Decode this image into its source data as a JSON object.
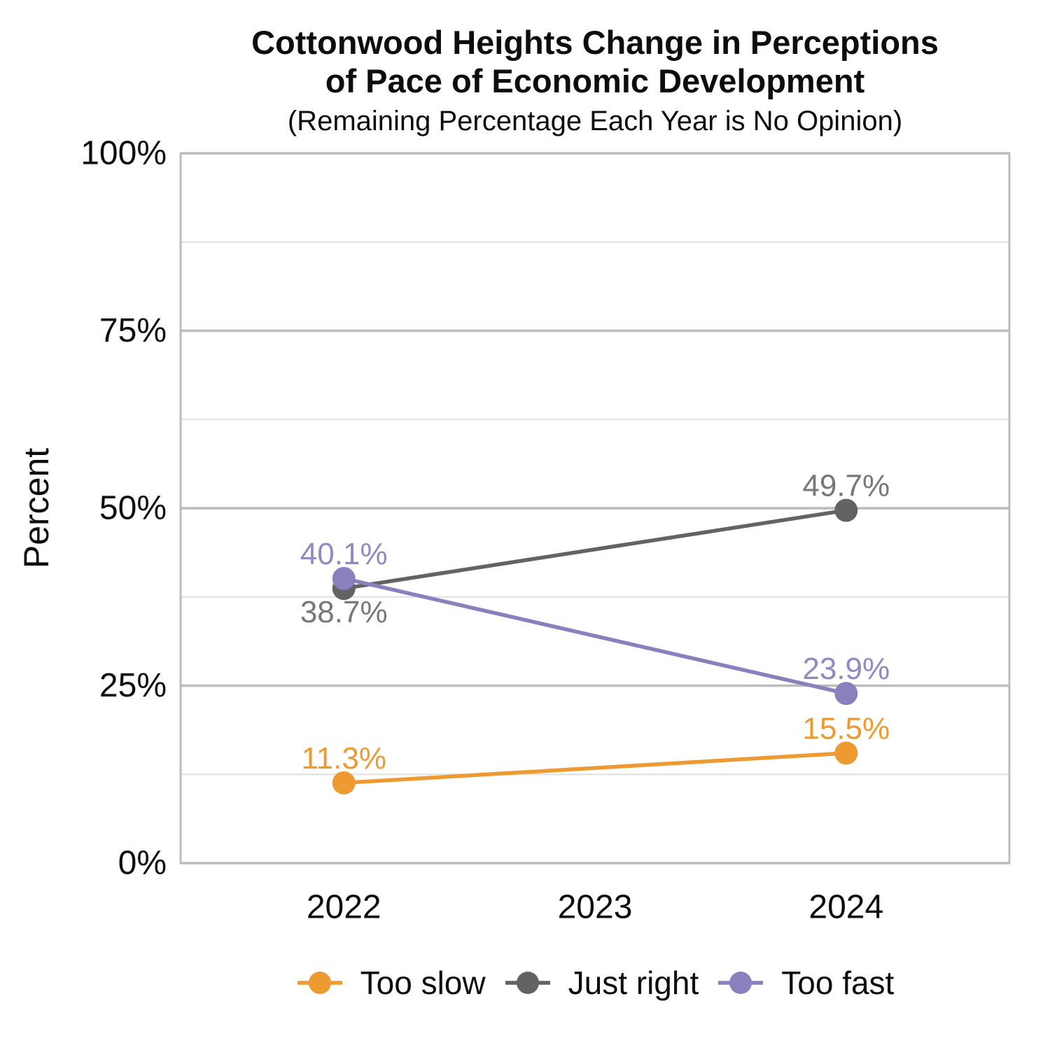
{
  "chart_data": {
    "type": "line",
    "title": "Cottonwood Heights Change in Perceptions of Pace of Economic Development",
    "title_lines": [
      "Cottonwood Heights Change in Perceptions",
      "of Pace of Economic Development"
    ],
    "subtitle": "(Remaining Percentage Each Year is No Opinion)",
    "ylabel": "Percent",
    "xlabel": "",
    "x_categories": [
      "2022",
      "2023",
      "2024"
    ],
    "ylim": [
      0,
      100
    ],
    "y_major_ticks": [
      0,
      25,
      50,
      75,
      100
    ],
    "y_tick_labels": [
      "0%",
      "25%",
      "50%",
      "75%",
      "100%"
    ],
    "y_minor_ticks": [
      12.5,
      37.5,
      62.5,
      87.5
    ],
    "grid": {
      "major_color": "#bcbcbc",
      "minor_color": "#e3e3e3",
      "border_color": "#bcbcbc",
      "background": "#ffffff"
    },
    "legend_position": "bottom",
    "series": [
      {
        "name": "Too slow",
        "color": "#ed9a31",
        "label_color": "#ed9a31",
        "points": [
          {
            "x": "2022",
            "y": 11.3,
            "label": "11.3%",
            "label_position": "above"
          },
          {
            "x": "2024",
            "y": 15.5,
            "label": "15.5%",
            "label_position": "above"
          }
        ]
      },
      {
        "name": "Just right",
        "color": "#636363",
        "label_color": "#787878",
        "points": [
          {
            "x": "2022",
            "y": 38.7,
            "label": "38.7%",
            "label_position": "below"
          },
          {
            "x": "2024",
            "y": 49.7,
            "label": "49.7%",
            "label_position": "above"
          }
        ]
      },
      {
        "name": "Too fast",
        "color": "#8b80be",
        "label_color": "#9189c3",
        "points": [
          {
            "x": "2022",
            "y": 40.1,
            "label": "40.1%",
            "label_position": "above"
          },
          {
            "x": "2024",
            "y": 23.9,
            "label": "23.9%",
            "label_position": "above"
          }
        ]
      }
    ]
  }
}
